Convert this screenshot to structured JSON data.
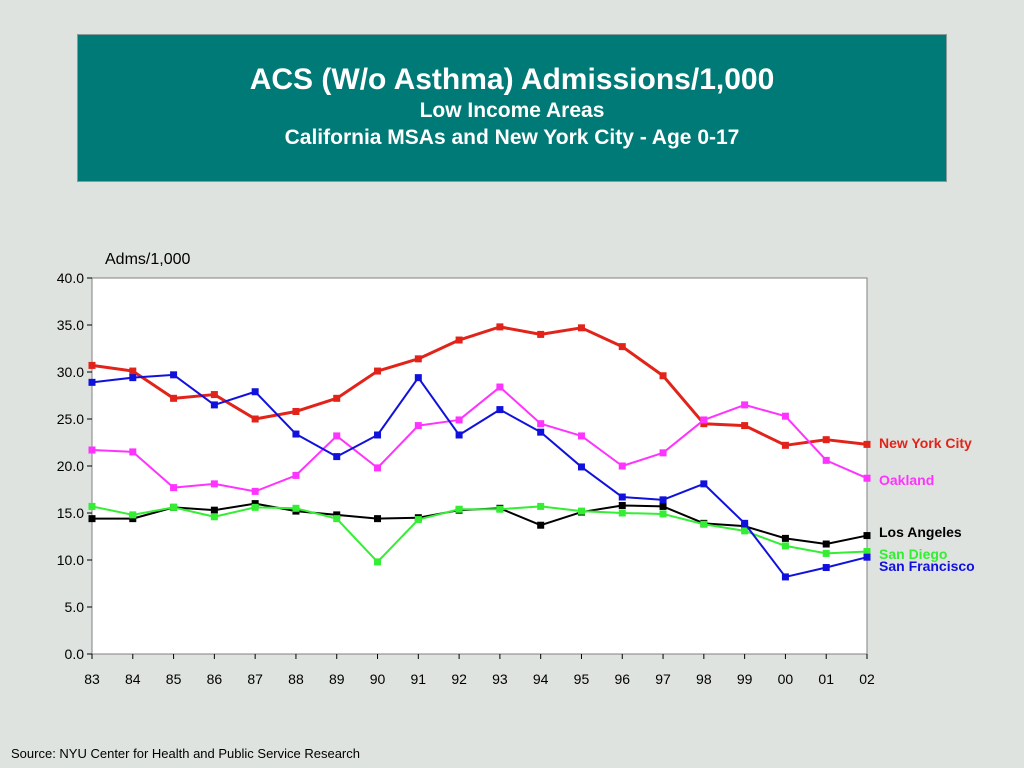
{
  "header": {
    "title": "ACS (W/o Asthma) Admissions/1,000",
    "subtitle1": "Low Income Areas",
    "subtitle2": "California MSAs and New York City - Age 0-17"
  },
  "footer": {
    "source": "Source:  NYU Center for Health and Public Service Research"
  },
  "chart_data": {
    "type": "line",
    "ylabel": "Adms/1,000",
    "xlabel": "",
    "ylim": [
      0,
      40
    ],
    "yticks": [
      "0.0",
      "5.0",
      "10.0",
      "15.0",
      "20.0",
      "25.0",
      "30.0",
      "35.0",
      "40.0"
    ],
    "categories": [
      "83",
      "84",
      "85",
      "86",
      "87",
      "88",
      "89",
      "90",
      "91",
      "92",
      "93",
      "94",
      "95",
      "96",
      "97",
      "98",
      "99",
      "00",
      "01",
      "02"
    ],
    "grid": false,
    "legend": "right-end-labels",
    "series": [
      {
        "name": "New York City",
        "color": "#e2231a",
        "bold": true,
        "values": [
          30.7,
          30.1,
          27.2,
          27.6,
          25.0,
          25.8,
          27.2,
          30.1,
          31.4,
          33.4,
          34.8,
          34.0,
          34.7,
          32.7,
          29.6,
          24.5,
          24.3,
          22.2,
          22.8,
          22.3
        ]
      },
      {
        "name": "Oakland",
        "color": "#ff33ff",
        "values": [
          21.7,
          21.5,
          17.7,
          18.1,
          17.3,
          19.0,
          23.2,
          19.8,
          24.3,
          24.9,
          28.4,
          24.5,
          23.2,
          20.0,
          21.4,
          24.9,
          26.5,
          25.3,
          20.6,
          18.7
        ]
      },
      {
        "name": "Los Angeles",
        "color": "#000000",
        "values": [
          14.4,
          14.4,
          15.6,
          15.3,
          16.0,
          15.2,
          14.8,
          14.4,
          14.5,
          15.3,
          15.5,
          13.7,
          15.1,
          15.8,
          15.7,
          13.9,
          13.6,
          12.3,
          11.7,
          12.6
        ]
      },
      {
        "name": "San Diego",
        "color": "#33ee33",
        "values": [
          15.7,
          14.8,
          15.6,
          14.6,
          15.6,
          15.5,
          14.4,
          9.8,
          14.3,
          15.4,
          15.4,
          15.7,
          15.2,
          15.0,
          14.9,
          13.8,
          13.1,
          11.5,
          10.7,
          10.9
        ]
      },
      {
        "name": "San Francisco",
        "color": "#1111dd",
        "values": [
          28.9,
          29.4,
          29.7,
          26.5,
          27.9,
          23.4,
          21.0,
          23.3,
          29.4,
          23.3,
          26.0,
          23.6,
          19.9,
          16.7,
          16.4,
          18.1,
          13.9,
          8.2,
          9.2,
          10.3
        ]
      }
    ]
  }
}
